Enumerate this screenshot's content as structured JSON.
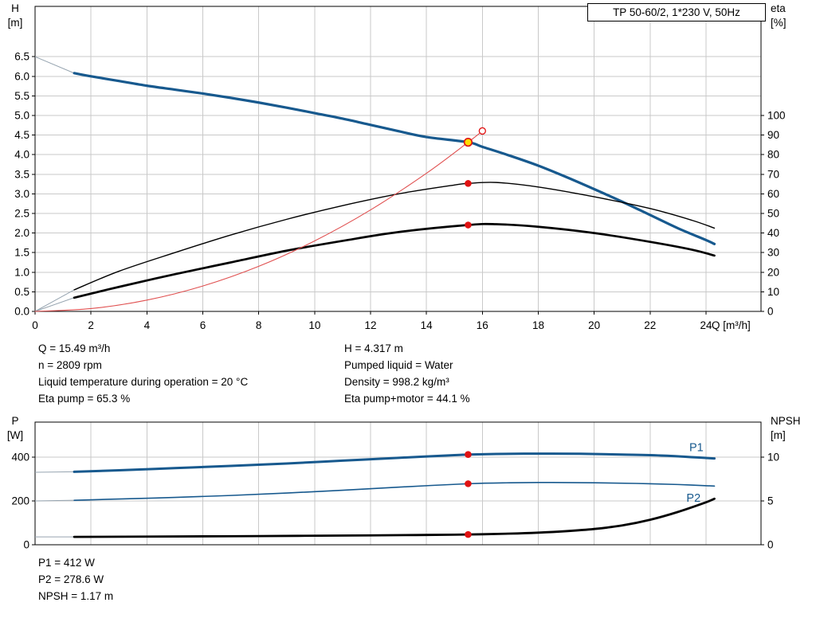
{
  "axis_corner_labels": {
    "top_left": [
      "H",
      "[m]"
    ],
    "top_right": [
      "eta",
      "[%]"
    ],
    "bottom_left": [
      "P",
      "[W]"
    ],
    "bottom_right": [
      "NPSH",
      "[m]"
    ]
  },
  "duty_info": {
    "left": [
      "Q = 15.49 m³/h",
      "n = 2809 rpm",
      "Liquid temperature during operation = 20 °C",
      "Eta pump = 65.3 %"
    ],
    "right": [
      "H = 4.317 m",
      "Pumped liquid = Water",
      "Density = 998.2 kg/m³",
      "Eta pump+motor = 44.1 %"
    ]
  },
  "power_info": [
    "P1 = 412 W",
    "P2 = 278.6 W",
    "NPSH = 1.17 m"
  ],
  "colors": {
    "curve_blue": "#17598e",
    "curve_black": "#000000",
    "curve_red": "#e05050",
    "marker_red": "#e01212",
    "marker_yellow": "#ffdc00",
    "grid": "#c9c9c9",
    "lead": "#96a4b0",
    "label_blue": "#17598e"
  },
  "chart_data": [
    {
      "type": "line",
      "title": "TP 50-60/2, 1*230 V, 50Hz",
      "x_axis": {
        "label": "Q [m³/h]",
        "min": 0,
        "max": 24,
        "step": 2,
        "show_labels": true
      },
      "y_left": {
        "label": "H [m]",
        "min": 0,
        "max": 6.5,
        "step": 0.5,
        "decimals": 1
      },
      "y_right": {
        "label": "eta [%]",
        "min": 0,
        "max": 100,
        "step": 10,
        "left_equiv_per_unit": 0.05
      },
      "series": [
        {
          "name": "pump-curve-H",
          "axis": "left",
          "color": "blue",
          "width": 3.2,
          "lead_from": [
            0,
            6.5
          ],
          "points": [
            [
              1.4,
              6.08
            ],
            [
              2,
              6.0
            ],
            [
              3,
              5.88
            ],
            [
              4,
              5.76
            ],
            [
              5,
              5.66
            ],
            [
              6,
              5.56
            ],
            [
              7,
              5.45
            ],
            [
              8,
              5.33
            ],
            [
              9,
              5.2
            ],
            [
              10,
              5.06
            ],
            [
              11,
              4.92
            ],
            [
              12,
              4.76
            ],
            [
              13,
              4.6
            ],
            [
              14,
              4.45
            ],
            [
              15.49,
              4.317
            ],
            [
              16,
              4.2
            ],
            [
              17,
              3.97
            ],
            [
              18,
              3.72
            ],
            [
              19,
              3.43
            ],
            [
              20,
              3.12
            ],
            [
              21,
              2.8
            ],
            [
              22,
              2.46
            ],
            [
              23,
              2.12
            ],
            [
              24,
              1.82
            ],
            [
              24.3,
              1.72
            ]
          ]
        },
        {
          "name": "eta-pump",
          "axis": "right",
          "color": "black",
          "width": 1.4,
          "lead_from": [
            0,
            0
          ],
          "points": [
            [
              1.4,
              11
            ],
            [
              3,
              20.5
            ],
            [
              5,
              30
            ],
            [
              7,
              39
            ],
            [
              9,
              47
            ],
            [
              11,
              54
            ],
            [
              13,
              60
            ],
            [
              15,
              64.5
            ],
            [
              15.49,
              65.3
            ],
            [
              16.5,
              65.8
            ],
            [
              18,
              63.5
            ],
            [
              20,
              58.5
            ],
            [
              22,
              52.5
            ],
            [
              23.5,
              46.5
            ],
            [
              24.3,
              42.5
            ]
          ]
        },
        {
          "name": "eta-pump-motor",
          "axis": "right",
          "color": "black",
          "width": 2.7,
          "lead_from": [
            0,
            0
          ],
          "points": [
            [
              1.4,
              7
            ],
            [
              3,
              12.5
            ],
            [
              5,
              19
            ],
            [
              7,
              25
            ],
            [
              9,
              31
            ],
            [
              11,
              36
            ],
            [
              13,
              40.5
            ],
            [
              15.49,
              44.1
            ],
            [
              16.5,
              44.5
            ],
            [
              18,
              43.2
            ],
            [
              20,
              40
            ],
            [
              22,
              35.5
            ],
            [
              23.5,
              31.5
            ],
            [
              24.3,
              28.5
            ]
          ]
        },
        {
          "name": "duty-parabola",
          "axis": "left",
          "color": "red",
          "width": 1.1,
          "points": [
            [
              0,
              0
            ],
            [
              2,
              0.072
            ],
            [
              4,
              0.288
            ],
            [
              6,
              0.648
            ],
            [
              8,
              1.151
            ],
            [
              10,
              1.799
            ],
            [
              12,
              2.59
            ],
            [
              14,
              3.526
            ],
            [
              15.49,
              4.317
            ],
            [
              16,
              4.605
            ]
          ]
        }
      ],
      "markers": [
        {
          "name": "eta-pump-point",
          "x": 15.49,
          "y": 65.3,
          "axis": "right",
          "style": "red"
        },
        {
          "name": "eta-pump-motor-point",
          "x": 15.49,
          "y": 44.1,
          "axis": "right",
          "style": "red"
        },
        {
          "name": "open-point",
          "x": 16,
          "y": 4.605,
          "axis": "left",
          "style": "open-red"
        },
        {
          "name": "duty-point",
          "x": 15.49,
          "y": 4.317,
          "axis": "left",
          "style": "yellow-red"
        }
      ]
    },
    {
      "type": "line",
      "title": "",
      "x_axis": {
        "label": "",
        "min": 0,
        "max": 24,
        "step": 2,
        "show_labels": false
      },
      "y_left": {
        "label": "P [W]",
        "min": 0,
        "max": 400,
        "step": 200,
        "decimals": 0
      },
      "y_right": {
        "label": "NPSH [m]",
        "min": 0,
        "max": 10,
        "step": 5,
        "left_equiv_per_unit": 40
      },
      "series": [
        {
          "name": "P1",
          "axis": "left",
          "color": "blue",
          "width": 3.0,
          "lead_from": [
            0,
            331
          ],
          "points": [
            [
              1.4,
              333
            ],
            [
              3,
              340
            ],
            [
              5,
              350
            ],
            [
              7,
              360
            ],
            [
              9,
              371
            ],
            [
              11,
              384
            ],
            [
              13,
              397
            ],
            [
              15,
              409
            ],
            [
              15.49,
              412
            ],
            [
              16.5,
              414.5
            ],
            [
              18,
              416
            ],
            [
              19.5,
              415.5
            ],
            [
              21,
              412
            ],
            [
              22.5,
              407
            ],
            [
              24.3,
              394
            ]
          ]
        },
        {
          "name": "P2",
          "axis": "left",
          "color": "blue",
          "width": 1.6,
          "lead_from": [
            0,
            200
          ],
          "points": [
            [
              1.4,
              203
            ],
            [
              3,
              209
            ],
            [
              5,
              216
            ],
            [
              7,
              225
            ],
            [
              9,
              236
            ],
            [
              11,
              249
            ],
            [
              13,
              263
            ],
            [
              15.49,
              278.6
            ],
            [
              17,
              283
            ],
            [
              18.5,
              284.5
            ],
            [
              20,
              283
            ],
            [
              21.5,
              280
            ],
            [
              23,
              275
            ],
            [
              24.3,
              268
            ]
          ]
        },
        {
          "name": "NPSH",
          "axis": "right",
          "color": "black",
          "width": 2.8,
          "lead_from": [
            0,
            0.9
          ],
          "points": [
            [
              1.4,
              0.9
            ],
            [
              4,
              0.93
            ],
            [
              8,
              0.99
            ],
            [
              12,
              1.07
            ],
            [
              14,
              1.12
            ],
            [
              15.49,
              1.17
            ],
            [
              17,
              1.27
            ],
            [
              18,
              1.38
            ],
            [
              19,
              1.55
            ],
            [
              20,
              1.8
            ],
            [
              21,
              2.2
            ],
            [
              22,
              2.85
            ],
            [
              23,
              3.75
            ],
            [
              24,
              4.85
            ],
            [
              24.3,
              5.25
            ]
          ]
        }
      ],
      "markers": [
        {
          "name": "p1-point",
          "x": 15.49,
          "y": 412,
          "axis": "left",
          "style": "red"
        },
        {
          "name": "p2-point",
          "x": 15.49,
          "y": 278.6,
          "axis": "left",
          "style": "red"
        },
        {
          "name": "npsh-point",
          "x": 15.49,
          "y": 1.17,
          "axis": "right",
          "style": "red"
        }
      ],
      "series_labels": [
        {
          "text": "P1",
          "x": 23.4,
          "y": 428,
          "axis": "left"
        },
        {
          "text": "P2",
          "x": 23.3,
          "y": 197,
          "axis": "left"
        }
      ]
    }
  ]
}
